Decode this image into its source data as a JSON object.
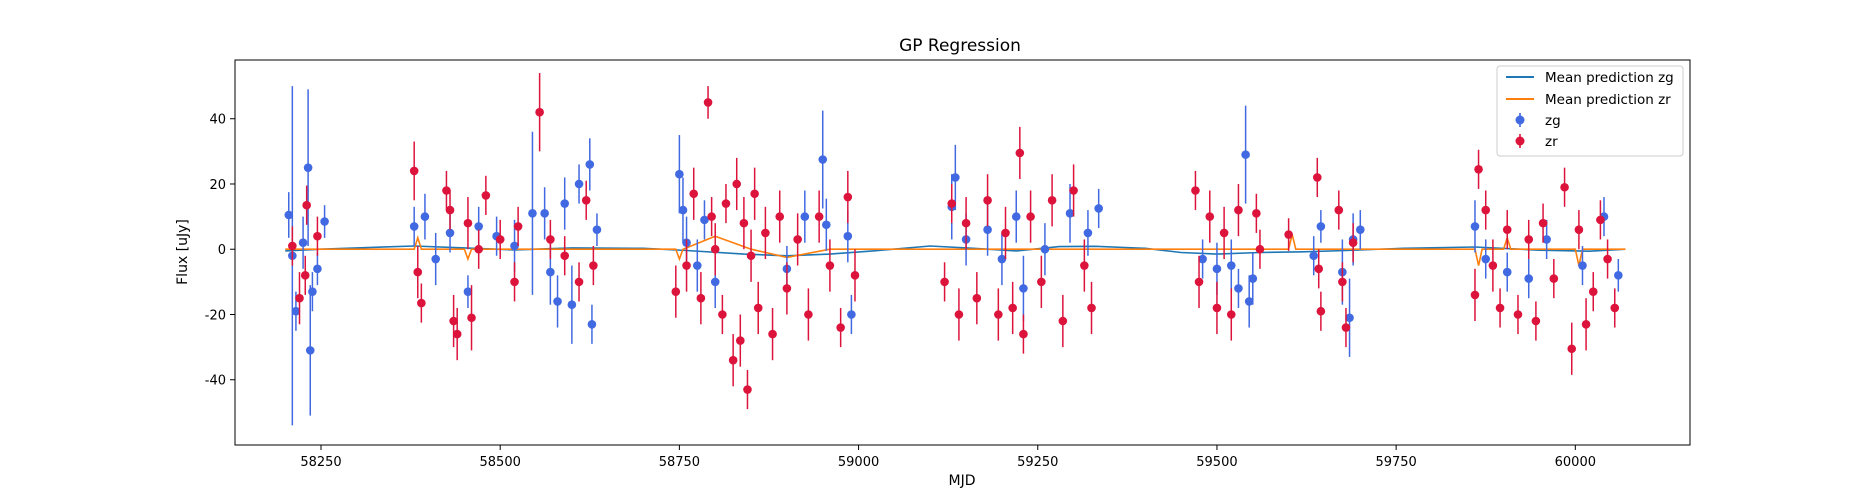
{
  "chart_data": {
    "type": "scatter",
    "title": "GP Regression",
    "xlabel": "MJD",
    "ylabel": "Flux [uJy]",
    "xlim": [
      58130,
      60160
    ],
    "ylim": [
      -60,
      58
    ],
    "xticks": [
      58250,
      58500,
      58750,
      59000,
      59250,
      59500,
      59750,
      60000
    ],
    "yticks": [
      -40,
      -20,
      0,
      20,
      40
    ],
    "grid": false,
    "legend": {
      "position": "top-right",
      "entries": [
        "Mean prediction zg",
        "Mean prediction zr",
        "zg",
        "zr"
      ]
    },
    "series": [
      {
        "name": "Mean prediction zg",
        "kind": "line",
        "color": "#1f77b4",
        "x": [
          58200,
          58250,
          58300,
          58380,
          58450,
          58520,
          58600,
          58700,
          58760,
          58840,
          58900,
          58960,
          59020,
          59100,
          59160,
          59220,
          59280,
          59330,
          59400,
          59450,
          59500,
          59560,
          59620,
          59680,
          59760,
          59860,
          59950,
          60020,
          60070
        ],
        "y": [
          -0.5,
          0.0,
          0.4,
          1.0,
          0.4,
          -0.2,
          0.4,
          0.3,
          -0.4,
          -1.5,
          -2.0,
          -1.5,
          -0.5,
          1.0,
          0.3,
          -0.5,
          0.8,
          0.9,
          0.3,
          -1.0,
          -1.5,
          -1.0,
          -0.8,
          -0.4,
          0.3,
          0.7,
          -0.3,
          -0.6,
          0.0
        ]
      },
      {
        "name": "Mean prediction zr",
        "kind": "line",
        "color": "#ff7f0e",
        "x": [
          58200,
          58250,
          58300,
          58380,
          58385,
          58390,
          58450,
          58455,
          58460,
          58520,
          58600,
          58700,
          58745,
          58750,
          58755,
          58800,
          58850,
          58900,
          58960,
          59020,
          59100,
          59200,
          59300,
          59400,
          59500,
          59560,
          59600,
          59605,
          59610,
          59650,
          59700,
          59800,
          59860,
          59865,
          59870,
          59900,
          59905,
          59910,
          59950,
          60000,
          60005,
          60010,
          60070
        ],
        "y": [
          0.0,
          0.0,
          0.0,
          0.0,
          3.5,
          0.0,
          0.0,
          -3.0,
          0.0,
          0.0,
          0.0,
          0.0,
          0.0,
          -3.0,
          0.0,
          4.0,
          0.0,
          -2.5,
          0.0,
          0.0,
          0.0,
          0.0,
          0.0,
          0.0,
          0.0,
          0.0,
          0.0,
          4.5,
          0.0,
          0.0,
          0.0,
          0.0,
          0.0,
          -5.0,
          0.0,
          0.0,
          3.5,
          0.0,
          0.0,
          0.0,
          -5.0,
          0.0,
          0.0
        ]
      },
      {
        "name": "zg",
        "kind": "errorbar",
        "color": "#4169e1",
        "points": [
          {
            "x": 58205,
            "y": 10.5,
            "err": 7
          },
          {
            "x": 58210,
            "y": -2,
            "err": 52
          },
          {
            "x": 58215,
            "y": -19,
            "err": 6
          },
          {
            "x": 58225,
            "y": 2,
            "err": 8
          },
          {
            "x": 58232,
            "y": 25,
            "err": 24
          },
          {
            "x": 58235,
            "y": -31,
            "err": 20
          },
          {
            "x": 58238,
            "y": -13,
            "err": 6
          },
          {
            "x": 58245,
            "y": -6,
            "err": 5
          },
          {
            "x": 58255,
            "y": 8.5,
            "err": 5
          },
          {
            "x": 58380,
            "y": 7,
            "err": 6
          },
          {
            "x": 58395,
            "y": 10,
            "err": 7
          },
          {
            "x": 58410,
            "y": -3,
            "err": 8
          },
          {
            "x": 58430,
            "y": 5,
            "err": 6
          },
          {
            "x": 58455,
            "y": -13,
            "err": 5
          },
          {
            "x": 58470,
            "y": 7,
            "err": 6
          },
          {
            "x": 58495,
            "y": 4,
            "err": 6
          },
          {
            "x": 58520,
            "y": 1,
            "err": 8
          },
          {
            "x": 58545,
            "y": 11,
            "err": 25
          },
          {
            "x": 58562,
            "y": 11,
            "err": 8
          },
          {
            "x": 58570,
            "y": -7,
            "err": 10
          },
          {
            "x": 58580,
            "y": -16,
            "err": 8
          },
          {
            "x": 58590,
            "y": 14,
            "err": 8
          },
          {
            "x": 58600,
            "y": -17,
            "err": 12
          },
          {
            "x": 58610,
            "y": 20,
            "err": 6
          },
          {
            "x": 58625,
            "y": 26,
            "err": 8
          },
          {
            "x": 58628,
            "y": -23,
            "err": 6
          },
          {
            "x": 58635,
            "y": 6,
            "err": 5
          },
          {
            "x": 58750,
            "y": 23,
            "err": 12
          },
          {
            "x": 58755,
            "y": 12,
            "err": 10
          },
          {
            "x": 58760,
            "y": 2,
            "err": 8
          },
          {
            "x": 58775,
            "y": -5,
            "err": 8
          },
          {
            "x": 58785,
            "y": 9,
            "err": 6
          },
          {
            "x": 58800,
            "y": -10,
            "err": 8
          },
          {
            "x": 58900,
            "y": -6,
            "err": 7
          },
          {
            "x": 58925,
            "y": 10,
            "err": 8
          },
          {
            "x": 58950,
            "y": 27.5,
            "err": 15
          },
          {
            "x": 58955,
            "y": 7.5,
            "err": 8
          },
          {
            "x": 58985,
            "y": 4,
            "err": 8
          },
          {
            "x": 58990,
            "y": -20,
            "err": 6
          },
          {
            "x": 59130,
            "y": 13,
            "err": 10
          },
          {
            "x": 59135,
            "y": 22,
            "err": 10
          },
          {
            "x": 59150,
            "y": 3,
            "err": 8
          },
          {
            "x": 59180,
            "y": 6,
            "err": 8
          },
          {
            "x": 59200,
            "y": -3,
            "err": 8
          },
          {
            "x": 59220,
            "y": 10,
            "err": 8
          },
          {
            "x": 59230,
            "y": -12,
            "err": 10
          },
          {
            "x": 59260,
            "y": 0,
            "err": 8
          },
          {
            "x": 59295,
            "y": 11,
            "err": 9
          },
          {
            "x": 59320,
            "y": 5,
            "err": 7
          },
          {
            "x": 59335,
            "y": 12.5,
            "err": 6
          },
          {
            "x": 59480,
            "y": -3,
            "err": 6
          },
          {
            "x": 59500,
            "y": -6,
            "err": 8
          },
          {
            "x": 59520,
            "y": -5,
            "err": 8
          },
          {
            "x": 59530,
            "y": -12,
            "err": 6
          },
          {
            "x": 59540,
            "y": 29,
            "err": 15
          },
          {
            "x": 59545,
            "y": -16,
            "err": 8
          },
          {
            "x": 59550,
            "y": -9,
            "err": 8
          },
          {
            "x": 59635,
            "y": -2,
            "err": 6
          },
          {
            "x": 59645,
            "y": 7,
            "err": 5
          },
          {
            "x": 59675,
            "y": -7,
            "err": 10
          },
          {
            "x": 59685,
            "y": -21,
            "err": 12
          },
          {
            "x": 59690,
            "y": 3,
            "err": 8
          },
          {
            "x": 59700,
            "y": 6,
            "err": 6
          },
          {
            "x": 59860,
            "y": 7,
            "err": 8
          },
          {
            "x": 59875,
            "y": -3,
            "err": 6
          },
          {
            "x": 59905,
            "y": -7,
            "err": 6
          },
          {
            "x": 59935,
            "y": -9,
            "err": 6
          },
          {
            "x": 59960,
            "y": 3,
            "err": 6
          },
          {
            "x": 60010,
            "y": -5,
            "err": 6
          },
          {
            "x": 60040,
            "y": 10,
            "err": 6
          },
          {
            "x": 60060,
            "y": -8,
            "err": 5
          }
        ]
      },
      {
        "name": "zr",
        "kind": "errorbar",
        "color": "#dc143c",
        "points": [
          {
            "x": 58210,
            "y": 1,
            "err": 6
          },
          {
            "x": 58220,
            "y": -15,
            "err": 8
          },
          {
            "x": 58228,
            "y": -8,
            "err": 6
          },
          {
            "x": 58230,
            "y": 13.5,
            "err": 6
          },
          {
            "x": 58245,
            "y": 4,
            "err": 6
          },
          {
            "x": 58380,
            "y": 24,
            "err": 9
          },
          {
            "x": 58385,
            "y": -7,
            "err": 8
          },
          {
            "x": 58390,
            "y": -16.5,
            "err": 6
          },
          {
            "x": 58425,
            "y": 18,
            "err": 6
          },
          {
            "x": 58430,
            "y": 12,
            "err": 6
          },
          {
            "x": 58435,
            "y": -22,
            "err": 8
          },
          {
            "x": 58440,
            "y": -26,
            "err": 8
          },
          {
            "x": 58455,
            "y": 8,
            "err": 8
          },
          {
            "x": 58460,
            "y": -21,
            "err": 10
          },
          {
            "x": 58470,
            "y": 0,
            "err": 6
          },
          {
            "x": 58480,
            "y": 16.5,
            "err": 6
          },
          {
            "x": 58500,
            "y": 3,
            "err": 6
          },
          {
            "x": 58520,
            "y": -10,
            "err": 6
          },
          {
            "x": 58525,
            "y": 7,
            "err": 6
          },
          {
            "x": 58555,
            "y": 42,
            "err": 12
          },
          {
            "x": 58570,
            "y": 3,
            "err": 6
          },
          {
            "x": 58590,
            "y": -2,
            "err": 6
          },
          {
            "x": 58610,
            "y": -10,
            "err": 6
          },
          {
            "x": 58620,
            "y": 15,
            "err": 6
          },
          {
            "x": 58630,
            "y": -5,
            "err": 6
          },
          {
            "x": 58745,
            "y": -13,
            "err": 8
          },
          {
            "x": 58760,
            "y": -5,
            "err": 8
          },
          {
            "x": 58770,
            "y": 17,
            "err": 8
          },
          {
            "x": 58780,
            "y": -15,
            "err": 8
          },
          {
            "x": 58790,
            "y": 45,
            "err": 5
          },
          {
            "x": 58795,
            "y": 10,
            "err": 6
          },
          {
            "x": 58800,
            "y": 0,
            "err": 8
          },
          {
            "x": 58810,
            "y": -20,
            "err": 6
          },
          {
            "x": 58815,
            "y": 14,
            "err": 6
          },
          {
            "x": 58825,
            "y": -34,
            "err": 8
          },
          {
            "x": 58830,
            "y": 20,
            "err": 8
          },
          {
            "x": 58835,
            "y": -28,
            "err": 8
          },
          {
            "x": 58840,
            "y": 8,
            "err": 8
          },
          {
            "x": 58845,
            "y": -43,
            "err": 6
          },
          {
            "x": 58850,
            "y": -2,
            "err": 8
          },
          {
            "x": 58855,
            "y": 17,
            "err": 8
          },
          {
            "x": 58860,
            "y": -18,
            "err": 8
          },
          {
            "x": 58870,
            "y": 5,
            "err": 8
          },
          {
            "x": 58880,
            "y": -26,
            "err": 8
          },
          {
            "x": 58890,
            "y": 10,
            "err": 8
          },
          {
            "x": 58900,
            "y": -12,
            "err": 8
          },
          {
            "x": 58915,
            "y": 3,
            "err": 8
          },
          {
            "x": 58930,
            "y": -20,
            "err": 8
          },
          {
            "x": 58945,
            "y": 10,
            "err": 8
          },
          {
            "x": 58960,
            "y": -5,
            "err": 8
          },
          {
            "x": 58975,
            "y": -24,
            "err": 6
          },
          {
            "x": 58985,
            "y": 16,
            "err": 8
          },
          {
            "x": 58995,
            "y": -8,
            "err": 8
          },
          {
            "x": 59120,
            "y": -10,
            "err": 6
          },
          {
            "x": 59130,
            "y": 14,
            "err": 6
          },
          {
            "x": 59140,
            "y": -20,
            "err": 8
          },
          {
            "x": 59150,
            "y": 8,
            "err": 8
          },
          {
            "x": 59165,
            "y": -15,
            "err": 8
          },
          {
            "x": 59180,
            "y": 15,
            "err": 8
          },
          {
            "x": 59195,
            "y": -20,
            "err": 8
          },
          {
            "x": 59205,
            "y": 5,
            "err": 8
          },
          {
            "x": 59215,
            "y": -18,
            "err": 8
          },
          {
            "x": 59225,
            "y": 29.5,
            "err": 8
          },
          {
            "x": 59230,
            "y": -26,
            "err": 6
          },
          {
            "x": 59240,
            "y": 10,
            "err": 8
          },
          {
            "x": 59255,
            "y": -10,
            "err": 8
          },
          {
            "x": 59270,
            "y": 15,
            "err": 8
          },
          {
            "x": 59285,
            "y": -22,
            "err": 8
          },
          {
            "x": 59300,
            "y": 18,
            "err": 8
          },
          {
            "x": 59315,
            "y": -5,
            "err": 8
          },
          {
            "x": 59325,
            "y": -18,
            "err": 8
          },
          {
            "x": 59470,
            "y": 18,
            "err": 6
          },
          {
            "x": 59475,
            "y": -10,
            "err": 8
          },
          {
            "x": 59490,
            "y": 10,
            "err": 8
          },
          {
            "x": 59500,
            "y": -18,
            "err": 8
          },
          {
            "x": 59510,
            "y": 5,
            "err": 8
          },
          {
            "x": 59520,
            "y": -20,
            "err": 8
          },
          {
            "x": 59530,
            "y": 12,
            "err": 8
          },
          {
            "x": 59555,
            "y": 11,
            "err": 6
          },
          {
            "x": 59560,
            "y": 0,
            "err": 6
          },
          {
            "x": 59600,
            "y": 4.5,
            "err": 5
          },
          {
            "x": 59640,
            "y": 22,
            "err": 6
          },
          {
            "x": 59642,
            "y": -6,
            "err": 6
          },
          {
            "x": 59645,
            "y": -19,
            "err": 6
          },
          {
            "x": 59670,
            "y": 12,
            "err": 6
          },
          {
            "x": 59675,
            "y": -10,
            "err": 6
          },
          {
            "x": 59680,
            "y": -24,
            "err": 6
          },
          {
            "x": 59690,
            "y": 2,
            "err": 6
          },
          {
            "x": 59860,
            "y": -14,
            "err": 8
          },
          {
            "x": 59865,
            "y": 24.5,
            "err": 6
          },
          {
            "x": 59875,
            "y": 12,
            "err": 6
          },
          {
            "x": 59885,
            "y": -5,
            "err": 8
          },
          {
            "x": 59895,
            "y": -18,
            "err": 6
          },
          {
            "x": 59905,
            "y": 6,
            "err": 6
          },
          {
            "x": 59920,
            "y": -20,
            "err": 6
          },
          {
            "x": 59935,
            "y": 3,
            "err": 6
          },
          {
            "x": 59945,
            "y": -22,
            "err": 6
          },
          {
            "x": 59955,
            "y": 8,
            "err": 6
          },
          {
            "x": 59970,
            "y": -9,
            "err": 6
          },
          {
            "x": 59985,
            "y": 19,
            "err": 6
          },
          {
            "x": 59995,
            "y": -30.5,
            "err": 8
          },
          {
            "x": 60005,
            "y": 6,
            "err": 6
          },
          {
            "x": 60015,
            "y": -23,
            "err": 8
          },
          {
            "x": 60025,
            "y": -13,
            "err": 6
          },
          {
            "x": 60035,
            "y": 9,
            "err": 6
          },
          {
            "x": 60045,
            "y": -3,
            "err": 6
          },
          {
            "x": 60055,
            "y": -18,
            "err": 6
          }
        ]
      }
    ]
  }
}
